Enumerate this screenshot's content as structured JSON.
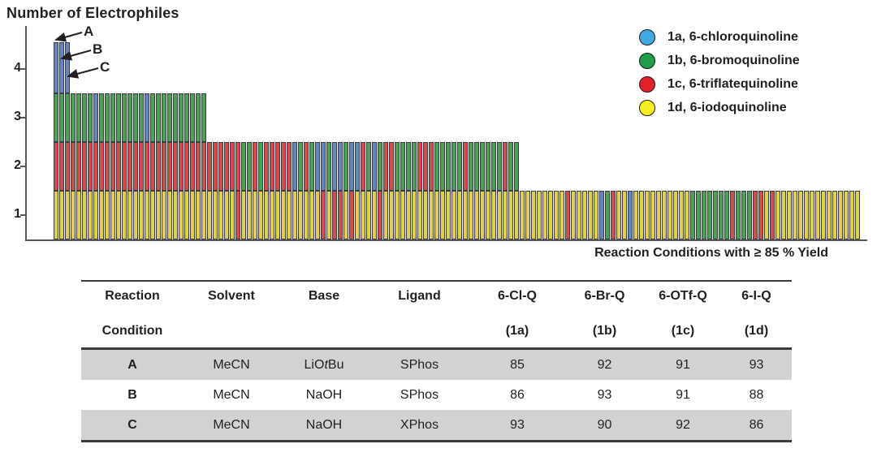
{
  "chart_data": {
    "type": "bar",
    "stacked": true,
    "title": "Number of Electrophiles",
    "xlabel": "Reaction Conditions with ≥ 85 % Yield",
    "ylabel": "Number of Electrophiles",
    "ylim": [
      0,
      4.5
    ],
    "ytick_labels": [
      "4",
      "3",
      "2",
      "1"
    ],
    "grid": false,
    "legend_position": "top-right",
    "n_conditions": 142,
    "conditions_reaching_level": {
      "1": 142,
      "2": 82,
      "3": 27,
      "4": 3
    },
    "annotation_labels": [
      "A",
      "B",
      "C"
    ],
    "annotated_conditions": {
      "A": 1,
      "B": 2,
      "C": 3
    },
    "segment_colors": {
      "B": "#6286C0",
      "G": "#4DA054",
      "R": "#CF4E4E",
      "Y": "#E0CE4E"
    },
    "segment_meaning": {
      "B": "1a, 6-chloroquinoline",
      "G": "1b, 6-bromoquinoline",
      "R": "1c, 6-triflatequinoline",
      "Y": "1d, 6-iodoquinoline"
    },
    "levels": [
      {
        "level": "4",
        "pattern": "BBB"
      },
      {
        "level": "3",
        "pattern": "GGGGGGGBGGGGGGGGBGGGGGGGGGG"
      },
      {
        "level": "2",
        "pattern": "RRRRRRRRRRRRRRRRRRRRRRRRRRRRRRRRRGGRGRRRRRBGRGBBGBBGBBRGBGRRGGGGRRRGGGGGRGGGGGGRGG"
      },
      {
        "level": "1",
        "pattern": "YYYYYYYYYYYYYYYYYYYYYYYYYYYYYYYYRYYYYYYYYYYYYYYRYRRYRYYYYRYYYYYYYYYYYYYYYYYYYYYYYYYYYYYYYYRYYYYYBGRYYBYYYYYYYYYYGGGGGGGRGGGRRYRYYYYYYYYYYYYYYY"
      }
    ],
    "legend": [
      {
        "label": "1a, 6-chloroquinoline",
        "color": "#3FA9E0"
      },
      {
        "label": "1b, 6-bromoquinoline",
        "color": "#1F9D49"
      },
      {
        "label": "1c, 6-triflatequinoline",
        "color": "#E1222A"
      },
      {
        "label": "1d, 6-iodoquinoline",
        "color": "#F7EE23"
      }
    ]
  },
  "table": {
    "header_row1": [
      "Reaction",
      "Solvent",
      "Base",
      "Ligand",
      "6-Cl-Q",
      "6-Br-Q",
      "6-OTf-Q",
      "6-I-Q"
    ],
    "header_row2": [
      "Condition",
      "",
      "",
      "",
      "(1a)",
      "(1b)",
      "(1c)",
      "(1d)"
    ],
    "rows": [
      {
        "shaded": true,
        "cells": [
          "A",
          "MeCN",
          [
            "LiO",
            "t",
            "Bu"
          ],
          "SPhos",
          "85",
          "92",
          "91",
          "93"
        ]
      },
      {
        "shaded": false,
        "cells": [
          "B",
          "MeCN",
          "NaOH",
          "SPhos",
          "86",
          "93",
          "91",
          "88"
        ]
      },
      {
        "shaded": true,
        "cells": [
          "C",
          "MeCN",
          "NaOH",
          "XPhos",
          "93",
          "90",
          "92",
          "86"
        ]
      }
    ]
  }
}
